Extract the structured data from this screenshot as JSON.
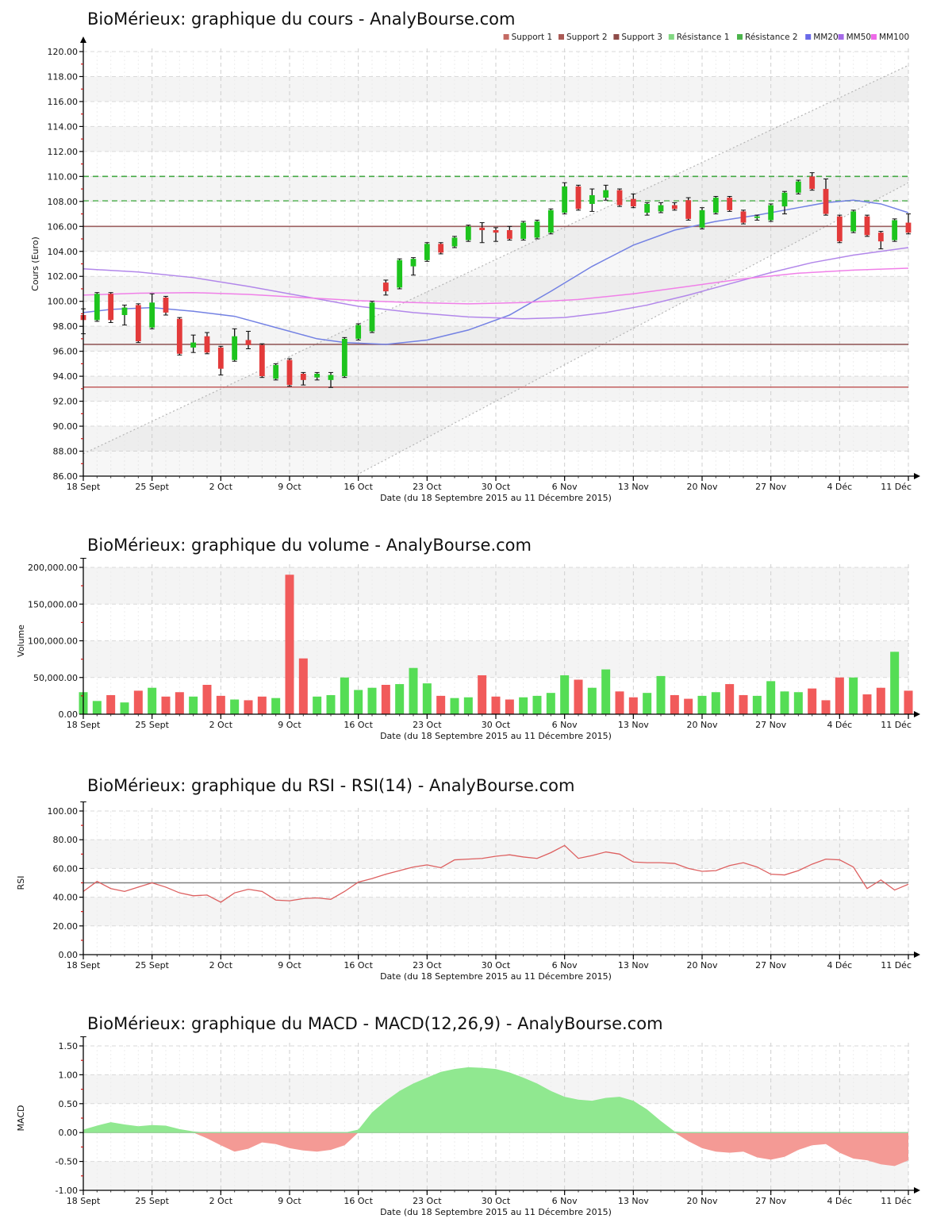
{
  "page_accent_colors": {
    "candle_up": "#1dc41d",
    "candle_down": "#e33a3a",
    "volume_up": "#55dd55",
    "volume_down": "#f15b5b",
    "rsi_line": "#dd6060",
    "macd_pos": "#90e890",
    "macd_neg": "#f49a95"
  },
  "charts": [
    {
      "title": "BioMérieux: graphique du cours - AnalyBourse.com",
      "type": "candlestick",
      "ylabel": "Cours (Euro)",
      "xlabel": "Date (du 18 Septembre 2015 au 11 Décembre 2015)",
      "ylim": [
        86,
        120
      ],
      "ytick_step": 2,
      "n": 61,
      "xticklabels": [
        "18 Sept",
        "25 Sept",
        "2 Oct",
        "9 Oct",
        "16 Oct",
        "23 Oct",
        "30 Oct",
        "6 Nov",
        "13 Nov",
        "20 Nov",
        "27 Nov",
        "4 Déc",
        "11 Déc"
      ],
      "legend": [
        {
          "label": "Support 1",
          "color": "#c46a63"
        },
        {
          "label": "Support 2",
          "color": "#aa5a55"
        },
        {
          "label": "Support 3",
          "color": "#8f4c49"
        },
        {
          "label": "Résistance 1",
          "color": "#82d882"
        },
        {
          "label": "Résistance 2",
          "color": "#4cb44c"
        },
        {
          "label": "MM20",
          "color": "#6a6ae8"
        },
        {
          "label": "MM50",
          "color": "#a56ae8"
        },
        {
          "label": "MM100",
          "color": "#ee6ae8"
        }
      ],
      "support_levels": [
        {
          "value": 106.0,
          "color": "#9b5f5f"
        },
        {
          "value": 96.55,
          "color": "#8d5151"
        },
        {
          "value": 93.13,
          "color": "#c66a6a"
        }
      ],
      "resistance_levels": [
        {
          "value": 108.05,
          "color": "#66bb66"
        },
        {
          "value": 110.0,
          "color": "#44a944"
        }
      ],
      "trend_channel": {
        "upper": [
          87.8,
          118.9
        ],
        "lower": [
          74.5,
          109.5
        ]
      },
      "mm20": [
        [
          0,
          99.1
        ],
        [
          2,
          99.35
        ],
        [
          5,
          99.5
        ],
        [
          8,
          99.2
        ],
        [
          11,
          98.8
        ],
        [
          14,
          97.9
        ],
        [
          17,
          97.0
        ],
        [
          19,
          96.7
        ],
        [
          22,
          96.55
        ],
        [
          25,
          96.9
        ],
        [
          28,
          97.7
        ],
        [
          31,
          98.9
        ],
        [
          34,
          100.8
        ],
        [
          37,
          102.8
        ],
        [
          40,
          104.5
        ],
        [
          43,
          105.7
        ],
        [
          46,
          106.4
        ],
        [
          49,
          106.9
        ],
        [
          52,
          107.5
        ],
        [
          54,
          107.9
        ],
        [
          56,
          108.1
        ],
        [
          58,
          107.8
        ],
        [
          60,
          107.1
        ]
      ],
      "mm50": [
        [
          0,
          102.6
        ],
        [
          4,
          102.35
        ],
        [
          8,
          101.9
        ],
        [
          12,
          101.2
        ],
        [
          16,
          100.4
        ],
        [
          20,
          99.6
        ],
        [
          24,
          99.1
        ],
        [
          28,
          98.75
        ],
        [
          32,
          98.6
        ],
        [
          35,
          98.7
        ],
        [
          38,
          99.1
        ],
        [
          41,
          99.7
        ],
        [
          44,
          100.5
        ],
        [
          47,
          101.4
        ],
        [
          50,
          102.3
        ],
        [
          53,
          103.1
        ],
        [
          56,
          103.7
        ],
        [
          58,
          104.0
        ],
        [
          60,
          104.3
        ]
      ],
      "mm100": [
        [
          0,
          100.5
        ],
        [
          4,
          100.65
        ],
        [
          8,
          100.7
        ],
        [
          12,
          100.55
        ],
        [
          16,
          100.3
        ],
        [
          20,
          100.05
        ],
        [
          24,
          99.9
        ],
        [
          28,
          99.8
        ],
        [
          32,
          99.9
        ],
        [
          36,
          100.15
        ],
        [
          40,
          100.6
        ],
        [
          44,
          101.2
        ],
        [
          48,
          101.8
        ],
        [
          52,
          102.25
        ],
        [
          56,
          102.5
        ],
        [
          60,
          102.65
        ]
      ],
      "candles": [
        [
          98.9,
          99.4,
          97.4,
          98.5
        ],
        [
          98.5,
          100.7,
          98.4,
          100.6
        ],
        [
          100.6,
          100.7,
          98.3,
          98.5
        ],
        [
          98.9,
          99.7,
          98.1,
          99.5
        ],
        [
          99.7,
          99.8,
          96.7,
          96.8
        ],
        [
          97.9,
          100.6,
          97.8,
          99.9
        ],
        [
          100.3,
          100.4,
          98.9,
          99.1
        ],
        [
          98.6,
          98.7,
          95.7,
          95.8
        ],
        [
          96.3,
          97.3,
          95.9,
          96.7
        ],
        [
          97.2,
          97.5,
          95.8,
          95.9
        ],
        [
          96.3,
          96.4,
          94.1,
          94.6
        ],
        [
          95.3,
          97.8,
          95.2,
          97.2
        ],
        [
          96.9,
          97.6,
          96.2,
          96.5
        ],
        [
          96.5,
          96.6,
          93.9,
          94.0
        ],
        [
          93.8,
          95.0,
          93.7,
          94.9
        ],
        [
          95.3,
          95.4,
          93.2,
          93.3
        ],
        [
          94.2,
          94.3,
          93.3,
          93.7
        ],
        [
          93.9,
          94.3,
          93.7,
          94.2
        ],
        [
          93.7,
          94.3,
          93.1,
          94.1
        ],
        [
          94.0,
          97.1,
          93.9,
          97.0
        ],
        [
          97.0,
          98.2,
          96.9,
          98.1
        ],
        [
          97.6,
          100.0,
          97.5,
          99.9
        ],
        [
          101.5,
          101.7,
          100.5,
          100.8
        ],
        [
          101.1,
          103.4,
          101.0,
          103.3
        ],
        [
          102.8,
          103.5,
          102.1,
          103.4
        ],
        [
          103.3,
          104.7,
          103.2,
          104.6
        ],
        [
          104.6,
          104.7,
          103.8,
          103.9
        ],
        [
          104.4,
          105.2,
          104.3,
          105.1
        ],
        [
          104.9,
          106.1,
          104.8,
          106.0
        ],
        [
          105.9,
          106.3,
          104.7,
          105.7
        ],
        [
          105.7,
          105.9,
          104.8,
          105.5
        ],
        [
          105.7,
          106.0,
          104.9,
          105.0
        ],
        [
          105.0,
          106.4,
          104.9,
          106.3
        ],
        [
          105.1,
          106.5,
          105.0,
          106.4
        ],
        [
          105.5,
          107.4,
          105.4,
          107.3
        ],
        [
          107.1,
          109.5,
          107.0,
          109.2
        ],
        [
          109.2,
          109.3,
          107.3,
          107.4
        ],
        [
          107.8,
          109.0,
          107.2,
          108.5
        ],
        [
          108.3,
          109.3,
          108.1,
          108.9
        ],
        [
          108.9,
          109.0,
          107.6,
          107.7
        ],
        [
          108.2,
          108.6,
          107.5,
          107.6
        ],
        [
          107.1,
          107.9,
          106.9,
          107.8
        ],
        [
          107.2,
          107.9,
          107.1,
          107.7
        ],
        [
          107.7,
          107.9,
          107.3,
          107.4
        ],
        [
          108.1,
          108.3,
          106.5,
          106.6
        ],
        [
          105.9,
          107.5,
          105.8,
          107.3
        ],
        [
          107.1,
          108.4,
          107.0,
          108.3
        ],
        [
          108.3,
          108.4,
          107.2,
          107.3
        ],
        [
          107.2,
          107.3,
          106.2,
          106.3
        ],
        [
          106.7,
          106.9,
          106.5,
          106.8
        ],
        [
          106.5,
          107.8,
          106.4,
          107.7
        ],
        [
          107.6,
          108.8,
          107.0,
          108.7
        ],
        [
          108.7,
          109.7,
          108.6,
          109.6
        ],
        [
          110.0,
          110.3,
          108.9,
          109.0
        ],
        [
          109.0,
          109.8,
          106.9,
          107.0
        ],
        [
          106.8,
          106.9,
          104.7,
          104.8
        ],
        [
          105.6,
          107.3,
          105.5,
          107.2
        ],
        [
          106.8,
          106.9,
          105.2,
          105.3
        ],
        [
          105.5,
          105.6,
          104.2,
          104.8
        ],
        [
          104.9,
          106.6,
          104.8,
          106.5
        ],
        [
          106.3,
          107.0,
          105.4,
          105.5
        ]
      ]
    },
    {
      "title": "BioMérieux: graphique du volume - AnalyBourse.com",
      "type": "volume",
      "ylabel": "Volume",
      "xlabel": "Date (du 18 Septembre 2015 au 11 Décembre 2015)",
      "ylim": [
        0,
        200000
      ],
      "ytick_step": 50000,
      "n": 61,
      "xticklabels": [
        "18 Sept",
        "25 Sept",
        "2 Oct",
        "9 Oct",
        "16 Oct",
        "23 Oct",
        "30 Oct",
        "6 Nov",
        "13 Nov",
        "20 Nov",
        "27 Nov",
        "4 Déc",
        "11 Déc"
      ],
      "values": [
        30000,
        18000,
        26000,
        16000,
        32000,
        36000,
        24000,
        30000,
        24000,
        40000,
        25000,
        20000,
        19000,
        24000,
        22000,
        190000,
        76000,
        24000,
        26000,
        50000,
        33000,
        36000,
        40000,
        41000,
        63000,
        42000,
        25000,
        22000,
        23000,
        53000,
        24000,
        20000,
        23000,
        25000,
        29000,
        53000,
        47000,
        36000,
        61000,
        31000,
        23000,
        29000,
        52000,
        26000,
        21000,
        25000,
        30000,
        41000,
        26000,
        25000,
        45000,
        31000,
        30000,
        35000,
        19000,
        50000,
        50000,
        27000,
        36000,
        85000,
        32000
      ],
      "colors": [
        "g",
        "g",
        "r",
        "g",
        "r",
        "g",
        "r",
        "r",
        "g",
        "r",
        "r",
        "g",
        "r",
        "r",
        "g",
        "r",
        "r",
        "g",
        "g",
        "g",
        "g",
        "g",
        "r",
        "g",
        "g",
        "g",
        "r",
        "g",
        "g",
        "r",
        "r",
        "r",
        "g",
        "g",
        "g",
        "g",
        "r",
        "g",
        "g",
        "r",
        "r",
        "g",
        "g",
        "r",
        "r",
        "g",
        "g",
        "r",
        "r",
        "g",
        "g",
        "g",
        "g",
        "r",
        "r",
        "r",
        "g",
        "r",
        "r",
        "g",
        "r"
      ]
    },
    {
      "title": "BioMérieux: graphique du RSI - RSI(14) - AnalyBourse.com",
      "type": "line",
      "ylabel": "RSI",
      "xlabel": "Date (du 18 Septembre 2015 au 11 Décembre 2015)",
      "ylim": [
        0,
        100
      ],
      "ytick_step": 20,
      "midline": 50,
      "n": 61,
      "xticklabels": [
        "18 Sept",
        "25 Sept",
        "2 Oct",
        "9 Oct",
        "16 Oct",
        "23 Oct",
        "30 Oct",
        "6 Nov",
        "13 Nov",
        "20 Nov",
        "27 Nov",
        "4 Déc",
        "11 Déc"
      ],
      "values": [
        44,
        51,
        46,
        44,
        47,
        50,
        47,
        43,
        41,
        41.5,
        36.5,
        43,
        45.5,
        44,
        38,
        37.5,
        39,
        39.5,
        38.5,
        44,
        50.5,
        53,
        56,
        58.5,
        61,
        62.5,
        60.5,
        66,
        66.5,
        67,
        68.5,
        69.5,
        68,
        67,
        71,
        76,
        67,
        69,
        71.5,
        70,
        64.5,
        64,
        64,
        63.5,
        60,
        58,
        58.5,
        62,
        64,
        61,
        56,
        55.5,
        58.5,
        63,
        66.5,
        66,
        61,
        46,
        52,
        45,
        49
      ]
    },
    {
      "title": "BioMérieux: graphique du MACD - MACD(12,26,9) - AnalyBourse.com",
      "type": "macd",
      "ylabel": "MACD",
      "xlabel": "Date (du 18 Septembre 2015 au 11 Décembre 2015)",
      "ylim": [
        -1.0,
        1.5
      ],
      "ytick_step": 0.5,
      "n": 61,
      "xticklabels": [
        "18 Sept",
        "25 Sept",
        "2 Oct",
        "9 Oct",
        "16 Oct",
        "23 Oct",
        "30 Oct",
        "6 Nov",
        "13 Nov",
        "20 Nov",
        "27 Nov",
        "4 Déc",
        "11 Déc"
      ],
      "values": [
        0.05,
        0.12,
        0.18,
        0.14,
        0.11,
        0.13,
        0.12,
        0.06,
        0.02,
        -0.1,
        -0.22,
        -0.33,
        -0.28,
        -0.17,
        -0.2,
        -0.27,
        -0.31,
        -0.33,
        -0.3,
        -0.22,
        0.05,
        0.35,
        0.55,
        0.72,
        0.85,
        0.95,
        1.05,
        1.1,
        1.13,
        1.12,
        1.1,
        1.04,
        0.95,
        0.85,
        0.72,
        0.62,
        0.57,
        0.55,
        0.6,
        0.62,
        0.55,
        0.4,
        0.2,
        0.02,
        -0.15,
        -0.27,
        -0.33,
        -0.35,
        -0.33,
        -0.43,
        -0.47,
        -0.42,
        -0.3,
        -0.22,
        -0.2,
        -0.35,
        -0.45,
        -0.48,
        -0.55,
        -0.58,
        -0.48
      ]
    }
  ],
  "chart_data": {
    "note": "see charts[] above: candlestick OHLC, volume bars, RSI(14) line, MACD(12,26,9) area for BioMérieux 18 Sep - 11 Dec 2015"
  }
}
